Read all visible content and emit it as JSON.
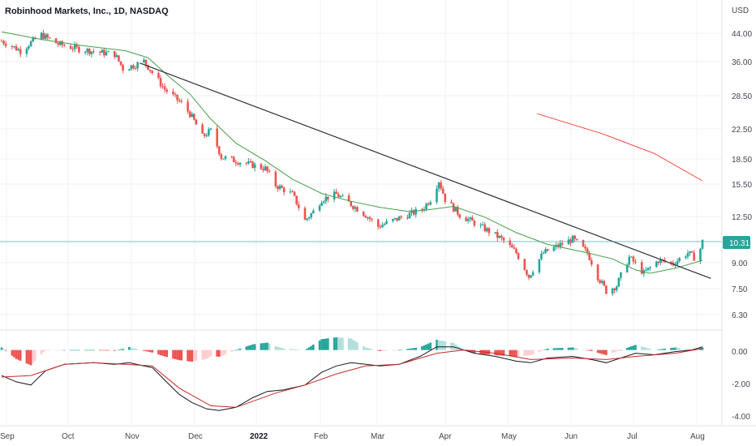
{
  "header": {
    "title": "Robinhood Markets, Inc., 1D, NASDAQ"
  },
  "chart_data": {
    "type": "candlestick",
    "currency_label": "USD",
    "y_axis_ticks": [
      "44.00",
      "36.00",
      "28.50",
      "22.50",
      "18.50",
      "15.50",
      "12.50",
      "10.31",
      "9.00",
      "7.50",
      "6.30"
    ],
    "last_price": "10.31",
    "x_axis_labels": [
      "Sep",
      "Oct",
      "Nov",
      "Dec",
      "2022",
      "Feb",
      "Mar",
      "Apr",
      "May",
      "Jun",
      "Jul",
      "Aug"
    ],
    "y_range": [
      5.6,
      52
    ],
    "log_scale": true,
    "price_path": [
      [
        "2021-09-01",
        44
      ],
      [
        "2021-09-10",
        41
      ],
      [
        "2021-09-20",
        46
      ],
      [
        "2021-09-28",
        43
      ],
      [
        "2021-10-08",
        41.5
      ],
      [
        "2021-10-18",
        40.5
      ],
      [
        "2021-10-25",
        40
      ],
      [
        "2021-10-29",
        36
      ],
      [
        "2021-11-04",
        37
      ],
      [
        "2021-11-08",
        38
      ],
      [
        "2021-11-12",
        35
      ],
      [
        "2021-11-18",
        31
      ],
      [
        "2021-11-26",
        28
      ],
      [
        "2021-11-30",
        26
      ],
      [
        "2021-12-06",
        22
      ],
      [
        "2021-12-10",
        23
      ],
      [
        "2021-12-15",
        19
      ],
      [
        "2021-12-22",
        18.5
      ],
      [
        "2021-12-29",
        18
      ],
      [
        "2022-01-05",
        17.5
      ],
      [
        "2022-01-10",
        15.5
      ],
      [
        "2022-01-18",
        14.5
      ],
      [
        "2022-01-24",
        12
      ],
      [
        "2022-01-28",
        12.8
      ],
      [
        "2022-02-01",
        14
      ],
      [
        "2022-02-08",
        14.5
      ],
      [
        "2022-02-15",
        13.5
      ],
      [
        "2022-02-22",
        12.5
      ],
      [
        "2022-02-28",
        11.5
      ],
      [
        "2022-03-07",
        12
      ],
      [
        "2022-03-14",
        12.5
      ],
      [
        "2022-03-21",
        13
      ],
      [
        "2022-03-25",
        14
      ],
      [
        "2022-03-29",
        16
      ],
      [
        "2022-04-01",
        14
      ],
      [
        "2022-04-08",
        12.5
      ],
      [
        "2022-04-18",
        11.5
      ],
      [
        "2022-04-28",
        10.5
      ],
      [
        "2022-05-05",
        9.5
      ],
      [
        "2022-05-11",
        8
      ],
      [
        "2022-05-18",
        9.5
      ],
      [
        "2022-05-25",
        10
      ],
      [
        "2022-06-01",
        10.5
      ],
      [
        "2022-06-08",
        9.5
      ],
      [
        "2022-06-13",
        8
      ],
      [
        "2022-06-17",
        7.2
      ],
      [
        "2022-06-22",
        7.5
      ],
      [
        "2022-06-28",
        9.2
      ],
      [
        "2022-07-05",
        8.2
      ],
      [
        "2022-07-12",
        9
      ],
      [
        "2022-07-19",
        8.8
      ],
      [
        "2022-07-26",
        9.5
      ],
      [
        "2022-07-29",
        9.2
      ],
      [
        "2022-08-01",
        9.8
      ],
      [
        "2022-08-02",
        10.31
      ]
    ],
    "ma_short": [
      [
        "2021-09-01",
        47
      ],
      [
        "2021-09-20",
        44.5
      ],
      [
        "2021-10-10",
        42.5
      ],
      [
        "2021-10-30",
        41
      ],
      [
        "2021-11-10",
        39
      ],
      [
        "2021-11-20",
        34
      ],
      [
        "2021-11-30",
        30
      ],
      [
        "2021-12-10",
        25
      ],
      [
        "2021-12-22",
        21
      ],
      [
        "2022-01-05",
        18.5
      ],
      [
        "2022-01-18",
        16.2
      ],
      [
        "2022-02-01",
        14.6
      ],
      [
        "2022-02-15",
        13.8
      ],
      [
        "2022-03-01",
        13.2
      ],
      [
        "2022-03-15",
        12.8
      ],
      [
        "2022-03-25",
        13
      ],
      [
        "2022-04-05",
        13.3
      ],
      [
        "2022-04-20",
        12.3
      ],
      [
        "2022-05-05",
        11
      ],
      [
        "2022-05-20",
        10.1
      ],
      [
        "2022-06-05",
        9.6
      ],
      [
        "2022-06-20",
        9.1
      ],
      [
        "2022-07-01",
        8.4
      ],
      [
        "2022-07-08",
        8.2
      ],
      [
        "2022-07-20",
        8.5
      ],
      [
        "2022-08-02",
        9
      ]
    ],
    "ma_long": [
      [
        "2022-05-15",
        26
      ],
      [
        "2022-06-15",
        22.5
      ],
      [
        "2022-07-10",
        19.5
      ],
      [
        "2022-08-02",
        16
      ]
    ],
    "trendline": [
      [
        "2021-11-06",
        37.5
      ],
      [
        "2022-08-06",
        7.9
      ]
    ],
    "macd_ticks": [
      "0.00",
      "-2.00",
      "-4.00"
    ],
    "macd_range": [
      -4.5,
      1.0
    ],
    "macd_line": [
      [
        "2021-09-01",
        -1.6
      ],
      [
        "2021-09-08",
        -2
      ],
      [
        "2021-09-15",
        -2.2
      ],
      [
        "2021-09-22",
        -1.3
      ],
      [
        "2021-10-01",
        -0.9
      ],
      [
        "2021-10-15",
        -0.8
      ],
      [
        "2021-10-25",
        -0.9
      ],
      [
        "2021-11-01",
        -0.8
      ],
      [
        "2021-11-08",
        -1
      ],
      [
        "2021-11-12",
        -1.1
      ],
      [
        "2021-11-18",
        -1.9
      ],
      [
        "2021-11-25",
        -2.8
      ],
      [
        "2021-12-01",
        -3.3
      ],
      [
        "2021-12-08",
        -3.7
      ],
      [
        "2021-12-14",
        -3.8
      ],
      [
        "2021-12-22",
        -3.6
      ],
      [
        "2021-12-30",
        -3
      ],
      [
        "2022-01-06",
        -2.6
      ],
      [
        "2022-01-14",
        -2.5
      ],
      [
        "2022-01-24",
        -2.2
      ],
      [
        "2022-02-01",
        -1.4
      ],
      [
        "2022-02-08",
        -1
      ],
      [
        "2022-02-15",
        -0.8
      ],
      [
        "2022-02-22",
        -0.9
      ],
      [
        "2022-03-01",
        -1
      ],
      [
        "2022-03-10",
        -0.9
      ],
      [
        "2022-03-20",
        -0.4
      ],
      [
        "2022-03-28",
        0.2
      ],
      [
        "2022-04-05",
        0.2
      ],
      [
        "2022-04-15",
        -0.2
      ],
      [
        "2022-04-25",
        -0.4
      ],
      [
        "2022-05-05",
        -0.7
      ],
      [
        "2022-05-12",
        -0.8
      ],
      [
        "2022-05-20",
        -0.5
      ],
      [
        "2022-06-01",
        -0.4
      ],
      [
        "2022-06-10",
        -0.6
      ],
      [
        "2022-06-17",
        -0.8
      ],
      [
        "2022-06-24",
        -0.5
      ],
      [
        "2022-07-01",
        -0.2
      ],
      [
        "2022-07-10",
        -0.3
      ],
      [
        "2022-07-20",
        -0.1
      ],
      [
        "2022-07-28",
        0
      ],
      [
        "2022-08-02",
        0.2
      ]
    ],
    "signal_line": [
      [
        "2021-09-01",
        -1.7
      ],
      [
        "2021-09-15",
        -1.6
      ],
      [
        "2021-10-01",
        -0.9
      ],
      [
        "2021-10-15",
        -0.8
      ],
      [
        "2021-10-30",
        -0.9
      ],
      [
        "2021-11-12",
        -1
      ],
      [
        "2021-11-25",
        -2.4
      ],
      [
        "2021-12-10",
        -3.5
      ],
      [
        "2021-12-22",
        -3.6
      ],
      [
        "2022-01-10",
        -2.7
      ],
      [
        "2022-01-24",
        -2.2
      ],
      [
        "2022-02-08",
        -1.5
      ],
      [
        "2022-02-22",
        -1
      ],
      [
        "2022-03-10",
        -0.9
      ],
      [
        "2022-03-28",
        -0.2
      ],
      [
        "2022-04-10",
        0
      ],
      [
        "2022-04-25",
        -0.2
      ],
      [
        "2022-05-12",
        -0.6
      ],
      [
        "2022-06-01",
        -0.5
      ],
      [
        "2022-06-17",
        -0.6
      ],
      [
        "2022-07-01",
        -0.4
      ],
      [
        "2022-07-20",
        -0.2
      ],
      [
        "2022-08-02",
        0.1
      ]
    ],
    "colors": {
      "up": "#26a69a",
      "down": "#ef5350",
      "ma_short": "#43a047",
      "ma_long": "#f44336",
      "trendline": "#2a2e39",
      "macd": "#131722",
      "signal": "#c62828",
      "hist_up_strong": "#26a69a",
      "hist_up_weak": "#b2dfdb",
      "hist_down_strong": "#ef5350",
      "hist_down_weak": "#ffcdd2",
      "price_tag": "#26a69a",
      "grid": "#eef1f5"
    }
  }
}
